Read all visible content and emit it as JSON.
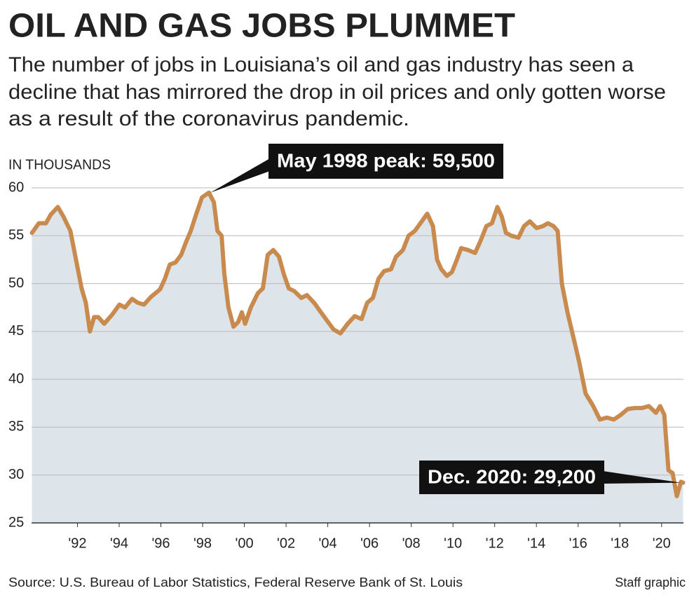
{
  "chart_data": {
    "type": "line",
    "title": "OIL AND GAS JOBS PLUMMET",
    "subtitle": [
      "The number of jobs in Louisiana’s oil and gas industry has seen a",
      "decline that has mirrored the drop in oil prices and only gotten worse",
      "as a result of the coronavirus pandemic."
    ],
    "y_label": "IN THOUSANDS",
    "source": "Source: U.S. Bureau of Labor Statistics, Federal Reserve Bank of St. Louis",
    "credit": "Staff graphic",
    "x": [
      1989.82,
      1990.15,
      1990.49,
      1990.72,
      1991.06,
      1991.33,
      1991.66,
      1991.93,
      1992.2,
      1992.4,
      1992.6,
      1992.8,
      1993.0,
      1993.28,
      1993.68,
      1994.01,
      1994.28,
      1994.62,
      1994.89,
      1995.19,
      1995.52,
      1995.96,
      1996.19,
      1996.43,
      1996.7,
      1996.97,
      1997.2,
      1997.43,
      1997.7,
      1997.97,
      1998.3,
      1998.54,
      1998.71,
      1998.91,
      1999.04,
      1999.24,
      1999.48,
      1999.71,
      1999.88,
      2000.04,
      2000.31,
      2000.65,
      2000.89,
      2001.12,
      2001.39,
      2001.66,
      2001.89,
      2002.13,
      2002.4,
      2002.73,
      2003.0,
      2003.34,
      2003.67,
      2003.94,
      2004.28,
      2004.61,
      2004.95,
      2005.29,
      2005.62,
      2005.89,
      2006.16,
      2006.43,
      2006.7,
      2007.03,
      2007.27,
      2007.6,
      2007.87,
      2008.17,
      2008.44,
      2008.77,
      2009.04,
      2009.24,
      2009.44,
      2009.71,
      2009.95,
      2010.19,
      2010.39,
      2010.73,
      2011.06,
      2011.33,
      2011.6,
      2011.87,
      2012.13,
      2012.34,
      2012.54,
      2012.8,
      2013.14,
      2013.41,
      2013.68,
      2014.01,
      2014.31,
      2014.55,
      2014.82,
      2015.02,
      2015.22,
      2015.49,
      2015.76,
      2016.03,
      2016.36,
      2016.7,
      2017.04,
      2017.38,
      2017.71,
      2018.05,
      2018.38,
      2018.72,
      2019.06,
      2019.39,
      2019.73,
      2019.93,
      2020.13,
      2020.33,
      2020.53,
      2020.73,
      2020.93,
      2021.03
    ],
    "series": [
      {
        "color": "#c98a4e",
        "values": [
          55.3,
          56.3,
          56.3,
          57.2,
          58.0,
          57.0,
          55.5,
          52.5,
          49.5,
          48.0,
          45.0,
          46.5,
          46.5,
          45.8,
          46.8,
          47.8,
          47.5,
          48.4,
          48.0,
          47.8,
          48.6,
          49.4,
          50.5,
          52.0,
          52.2,
          53.0,
          54.3,
          55.5,
          57.3,
          59.0,
          59.5,
          58.5,
          55.5,
          55.0,
          51.0,
          47.5,
          45.5,
          46.0,
          47.0,
          45.8,
          47.5,
          49.0,
          49.5,
          53.0,
          53.5,
          52.8,
          51.0,
          49.5,
          49.2,
          48.5,
          48.8,
          48.0,
          47.0,
          46.2,
          45.2,
          44.8,
          45.8,
          46.6,
          46.3,
          48.0,
          48.5,
          50.5,
          51.3,
          51.5,
          52.8,
          53.5,
          55.0,
          55.5,
          56.3,
          57.3,
          56.0,
          52.5,
          51.5,
          50.8,
          51.2,
          52.5,
          53.7,
          53.5,
          53.2,
          54.5,
          56.0,
          56.3,
          58.0,
          57.0,
          55.3,
          55.0,
          54.8,
          56.0,
          56.5,
          55.8,
          56.0,
          56.3,
          56.0,
          55.5,
          50.0,
          47.0,
          44.5,
          42.0,
          38.5,
          37.3,
          35.8,
          36.0,
          35.8,
          36.3,
          36.9,
          37.0,
          37.0,
          37.2,
          36.5,
          37.2,
          36.3,
          30.5,
          30.2,
          27.8,
          29.3,
          29.2
        ]
      }
    ],
    "area_color": "#dde4ea",
    "xlim": [
      1989.8,
      2021.05
    ],
    "xticks": [
      {
        "value": 1992,
        "label": "'92"
      },
      {
        "value": 1994,
        "label": "'94"
      },
      {
        "value": 1996,
        "label": "'96"
      },
      {
        "value": 1998,
        "label": "'98"
      },
      {
        "value": 2000,
        "label": "'00"
      },
      {
        "value": 2002,
        "label": "'02"
      },
      {
        "value": 2004,
        "label": "'04"
      },
      {
        "value": 2006,
        "label": "'06"
      },
      {
        "value": 2008,
        "label": "'08"
      },
      {
        "value": 2010,
        "label": "'10"
      },
      {
        "value": 2012,
        "label": "'12"
      },
      {
        "value": 2014,
        "label": "'14"
      },
      {
        "value": 2016,
        "label": "'16"
      },
      {
        "value": 2018,
        "label": "'18"
      },
      {
        "value": 2020,
        "label": "'20"
      }
    ],
    "ylim": [
      25,
      60
    ],
    "yticks": [
      25,
      30,
      35,
      40,
      45,
      50,
      55,
      60
    ],
    "grid": true,
    "annotations": [
      {
        "text": "May 1998 peak: 59,500",
        "x": 1998.37,
        "y": 59.5
      },
      {
        "text": "Dec. 2020: 29,200",
        "x": 2020.92,
        "y": 29.2
      }
    ]
  }
}
